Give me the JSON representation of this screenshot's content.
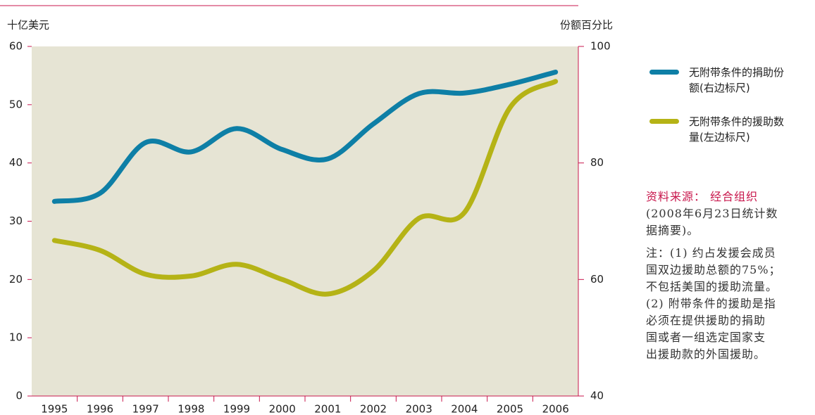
{
  "chart_data": {
    "type": "line",
    "y_label": "十亿美元",
    "y2_label": "份额百分比",
    "categories": [
      "1995",
      "1996",
      "1997",
      "1998",
      "1999",
      "2000",
      "2001",
      "2002",
      "2003",
      "2004",
      "2005",
      "2006"
    ],
    "series": [
      {
        "name": "无附带条件的捐助份额(右边标尺)",
        "color": "#0e7fa6",
        "axis": "y2",
        "values": [
          73.4,
          74.8,
          83.5,
          81.9,
          85.9,
          82.3,
          80.7,
          86.7,
          91.9,
          92.0,
          93.5,
          95.6
        ]
      },
      {
        "name": "无附带条件的援助数量(左边标尺)",
        "color": "#b5b316",
        "axis": "y",
        "values": [
          26.7,
          25.0,
          20.9,
          20.6,
          22.6,
          20.0,
          17.5,
          21.5,
          30.5,
          31.5,
          49.5,
          54.0
        ]
      }
    ],
    "ylim": [
      0,
      60
    ],
    "yticks": [
      0,
      10,
      20,
      30,
      40,
      50,
      60
    ],
    "y2lim": [
      40,
      100
    ],
    "y2ticks": [
      40,
      60,
      80,
      100
    ],
    "source": [
      "资料来源： 经合组织",
      "(2008年6月23日统计数",
      "据摘要)。"
    ],
    "notes": [
      "注：(1) 约占发援会成员",
      "国双边援助总额的75%；",
      "不包括美国的援助流量。",
      "(2) 附带条件的援助是指",
      "必须在提供援助的捐助",
      "国或者一组选定国家支",
      "出援助款的外国援助。"
    ]
  }
}
